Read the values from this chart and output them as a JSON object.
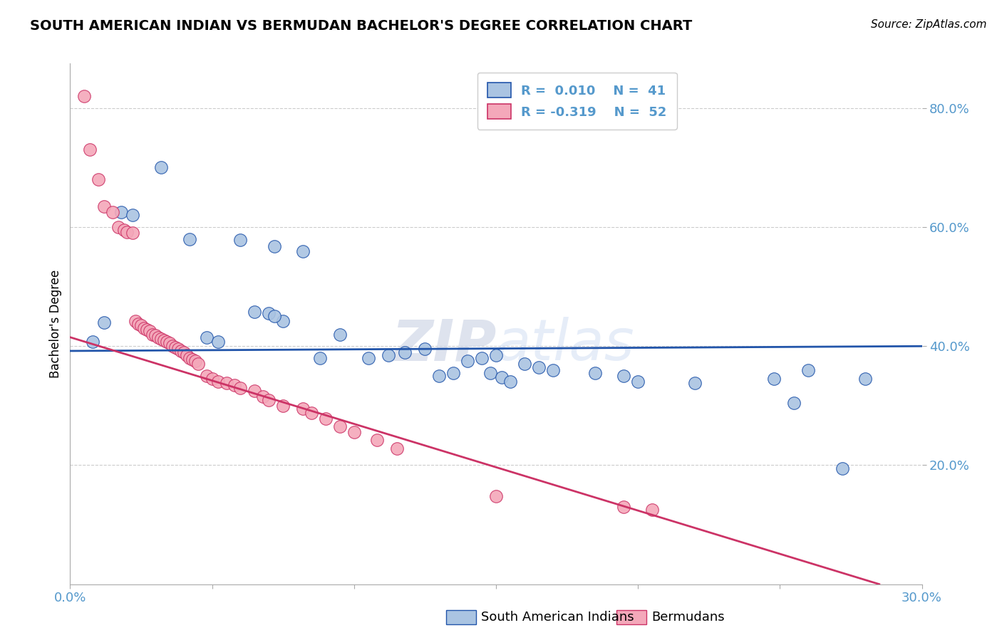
{
  "title": "SOUTH AMERICAN INDIAN VS BERMUDAN BACHELOR'S DEGREE CORRELATION CHART",
  "source": "Source: ZipAtlas.com",
  "ylabel": "Bachelor's Degree",
  "xlim": [
    0.0,
    0.3
  ],
  "ylim": [
    0.0,
    0.875
  ],
  "yticks": [
    0.2,
    0.4,
    0.6,
    0.8
  ],
  "ytick_labels": [
    "20.0%",
    "40.0%",
    "60.0%",
    "80.0%"
  ],
  "xticks": [
    0.0,
    0.05,
    0.1,
    0.15,
    0.2,
    0.25,
    0.3
  ],
  "xtick_labels": [
    "0.0%",
    "",
    "",
    "",
    "",
    "",
    "30.0%"
  ],
  "watermark_zip": "ZIP",
  "watermark_atlas": "atlas",
  "blue_color": "#aac4e2",
  "pink_color": "#f4a8ba",
  "trend_blue_color": "#2255aa",
  "trend_pink_color": "#cc3366",
  "label_color": "#5599cc",
  "blue_scatter_x": [
    0.008,
    0.032,
    0.018,
    0.042,
    0.022,
    0.06,
    0.072,
    0.075,
    0.082,
    0.088,
    0.095,
    0.012,
    0.048,
    0.052,
    0.105,
    0.112,
    0.118,
    0.125,
    0.13,
    0.135,
    0.065,
    0.07,
    0.072,
    0.14,
    0.145,
    0.15,
    0.16,
    0.165,
    0.17,
    0.185,
    0.195,
    0.2,
    0.148,
    0.152,
    0.155,
    0.22,
    0.248,
    0.255,
    0.26,
    0.272,
    0.28
  ],
  "blue_scatter_y": [
    0.408,
    0.7,
    0.625,
    0.58,
    0.62,
    0.578,
    0.568,
    0.442,
    0.56,
    0.38,
    0.42,
    0.44,
    0.415,
    0.408,
    0.38,
    0.385,
    0.39,
    0.395,
    0.35,
    0.355,
    0.458,
    0.455,
    0.45,
    0.375,
    0.38,
    0.385,
    0.37,
    0.365,
    0.36,
    0.355,
    0.35,
    0.34,
    0.355,
    0.348,
    0.34,
    0.338,
    0.345,
    0.305,
    0.36,
    0.195,
    0.345
  ],
  "pink_scatter_x": [
    0.005,
    0.007,
    0.01,
    0.012,
    0.015,
    0.017,
    0.019,
    0.02,
    0.022,
    0.023,
    0.024,
    0.025,
    0.026,
    0.027,
    0.028,
    0.029,
    0.03,
    0.031,
    0.032,
    0.033,
    0.034,
    0.035,
    0.036,
    0.037,
    0.038,
    0.039,
    0.04,
    0.041,
    0.042,
    0.043,
    0.044,
    0.045,
    0.048,
    0.05,
    0.052,
    0.055,
    0.058,
    0.06,
    0.065,
    0.068,
    0.07,
    0.075,
    0.082,
    0.085,
    0.09,
    0.095,
    0.1,
    0.108,
    0.115,
    0.15,
    0.195,
    0.205
  ],
  "pink_scatter_y": [
    0.82,
    0.73,
    0.68,
    0.635,
    0.625,
    0.6,
    0.595,
    0.592,
    0.59,
    0.442,
    0.438,
    0.435,
    0.43,
    0.428,
    0.425,
    0.42,
    0.418,
    0.415,
    0.412,
    0.41,
    0.408,
    0.405,
    0.4,
    0.398,
    0.395,
    0.392,
    0.39,
    0.385,
    0.38,
    0.378,
    0.375,
    0.37,
    0.35,
    0.345,
    0.34,
    0.338,
    0.335,
    0.33,
    0.325,
    0.315,
    0.31,
    0.3,
    0.295,
    0.288,
    0.278,
    0.265,
    0.255,
    0.242,
    0.228,
    0.148,
    0.13,
    0.125
  ],
  "blue_trend_x": [
    0.0,
    0.3
  ],
  "blue_trend_y": [
    0.392,
    0.4
  ],
  "pink_trend_x": [
    0.0,
    0.285
  ],
  "pink_trend_y": [
    0.415,
    0.0
  ],
  "background_color": "#ffffff",
  "grid_color": "#cccccc",
  "legend_bottom_labels": [
    "South American Indians",
    "Bermudans"
  ]
}
